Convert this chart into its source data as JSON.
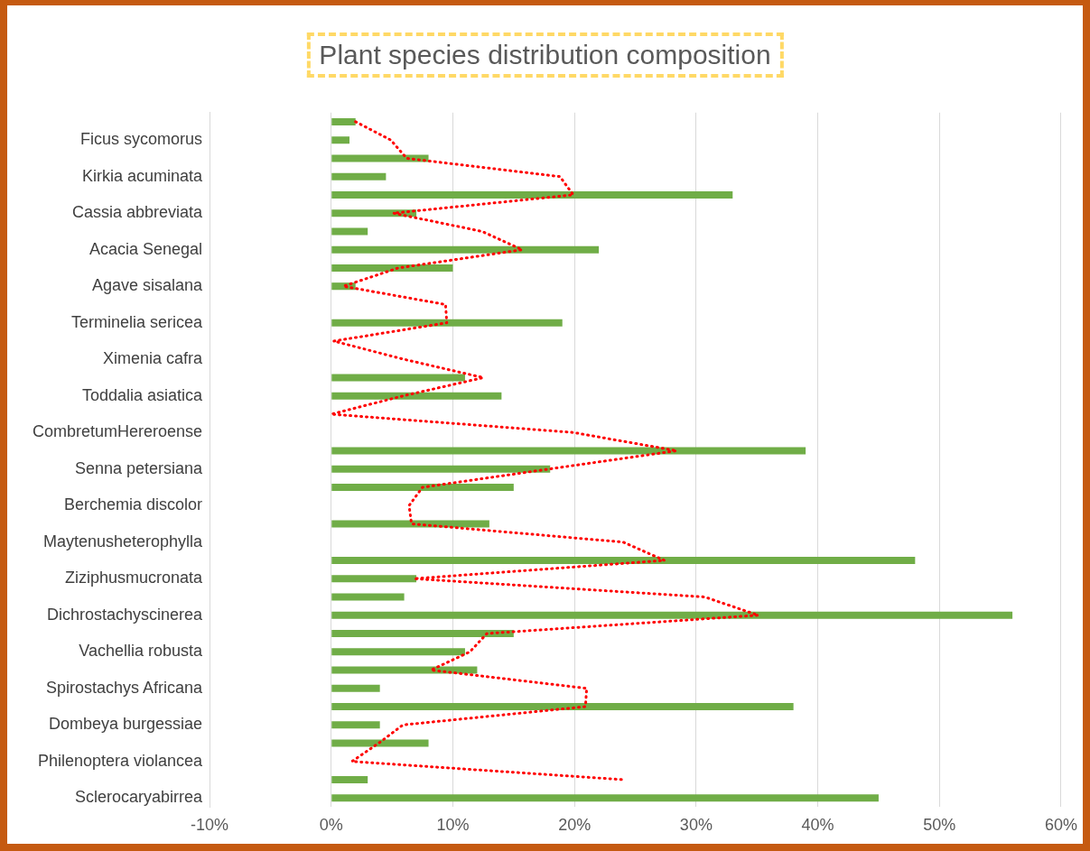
{
  "chart_data": {
    "type": "bar",
    "orientation": "horizontal",
    "title": "Plant species distribution composition",
    "categories": [
      null,
      "Ficus sycomorus",
      null,
      "Kirkia acuminata",
      null,
      "Cassia abbreviata",
      null,
      "Acacia Senegal",
      null,
      "Agave sisalana",
      null,
      "Terminelia sericea",
      null,
      "Ximenia cafra",
      null,
      "Toddalia asiatica",
      null,
      "CombretumHereroense",
      null,
      "Senna petersiana",
      null,
      "Berchemia discolor",
      null,
      "Maytenusheterophylla",
      null,
      "Ziziphusmucronata",
      null,
      "Dichrostachyscinerea",
      null,
      "Vachellia robusta",
      null,
      "Spirostachys Africana",
      null,
      "Dombeya burgessiae",
      null,
      "Philenoptera violancea",
      null,
      "Sclerocaryabirrea"
    ],
    "series": [
      {
        "color": "#70ad47",
        "values": [
          2,
          1.5,
          8,
          4.5,
          33,
          7,
          3,
          22,
          10,
          2,
          0,
          19,
          0,
          0,
          11,
          14,
          0,
          0,
          39,
          18,
          15,
          0,
          13,
          0,
          48,
          7,
          6,
          56,
          15,
          11,
          12,
          4,
          38,
          4,
          8,
          0,
          3,
          45
        ]
      },
      {
        "type": "line",
        "color": "#ff0000",
        "line_style": "dotted",
        "marker": "none",
        "values": [
          2,
          4.9,
          6.2,
          18.8,
          19.9,
          5.1,
          12.4,
          15.7,
          5.5,
          1,
          9.4,
          9.5,
          0.2,
          6,
          12.5,
          5.9,
          0,
          19.9,
          28.4,
          17.9,
          7.5,
          6.4,
          6.6,
          24,
          27.4,
          6.8,
          30.7,
          35.1,
          12.8,
          11.4,
          8.2,
          21,
          20.9,
          5.9,
          3.9,
          1.7,
          24.1,
          null
        ]
      }
    ],
    "xlim": [
      -10,
      60
    ],
    "xticks": [
      {
        "value": -10,
        "label": "-10%"
      },
      {
        "value": 0,
        "label": "0%"
      },
      {
        "value": 10,
        "label": "10%"
      },
      {
        "value": 20,
        "label": "20%"
      },
      {
        "value": 30,
        "label": "30%"
      },
      {
        "value": 40,
        "label": "40%"
      },
      {
        "value": 50,
        "label": "50%"
      },
      {
        "value": 60,
        "label": "60%"
      }
    ],
    "grid": "x"
  }
}
